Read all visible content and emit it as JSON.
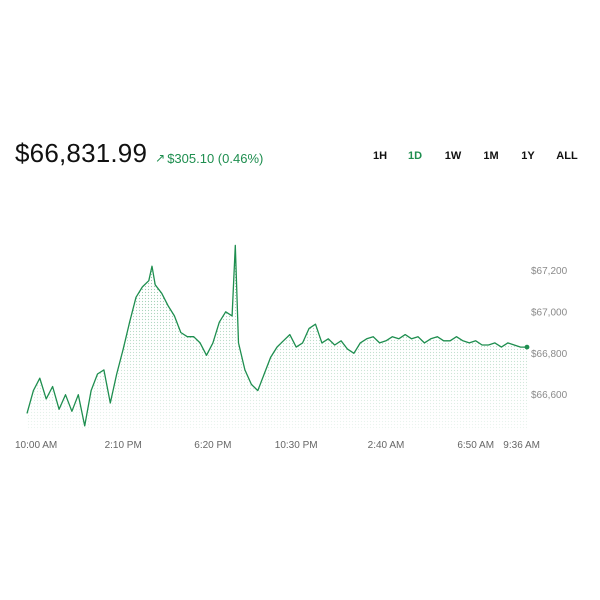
{
  "header": {
    "price": "$66,831.99",
    "change": "$305.10 (0.46%)",
    "change_direction": "up"
  },
  "range_tabs": [
    "1H",
    "1D",
    "1W",
    "1M",
    "1Y",
    "ALL"
  ],
  "active_range": "1D",
  "colors": {
    "accent": "#1e8e4f",
    "text": "#111111",
    "axis_text": "#8a8a8a"
  },
  "chart_data": {
    "type": "line",
    "series": [
      {
        "values": [
          [
            0,
            66510
          ],
          [
            0.2,
            66620
          ],
          [
            0.4,
            66680
          ],
          [
            0.6,
            66580
          ],
          [
            0.8,
            66640
          ],
          [
            1.0,
            66530
          ],
          [
            1.2,
            66600
          ],
          [
            1.4,
            66520
          ],
          [
            1.6,
            66600
          ],
          [
            1.8,
            66450
          ],
          [
            2.0,
            66620
          ],
          [
            2.2,
            66700
          ],
          [
            2.4,
            66720
          ],
          [
            2.6,
            66560
          ],
          [
            2.8,
            66700
          ],
          [
            3.0,
            66820
          ],
          [
            3.2,
            66950
          ],
          [
            3.4,
            67070
          ],
          [
            3.6,
            67120
          ],
          [
            3.8,
            67150
          ],
          [
            3.9,
            67220
          ],
          [
            4.0,
            67130
          ],
          [
            4.2,
            67090
          ],
          [
            4.4,
            67030
          ],
          [
            4.6,
            66980
          ],
          [
            4.8,
            66900
          ],
          [
            5.0,
            66880
          ],
          [
            5.2,
            66880
          ],
          [
            5.4,
            66850
          ],
          [
            5.6,
            66790
          ],
          [
            5.8,
            66850
          ],
          [
            6.0,
            66950
          ],
          [
            6.2,
            67000
          ],
          [
            6.4,
            66980
          ],
          [
            6.5,
            67320
          ],
          [
            6.6,
            66850
          ],
          [
            6.8,
            66720
          ],
          [
            7.0,
            66650
          ],
          [
            7.2,
            66620
          ],
          [
            7.4,
            66700
          ],
          [
            7.6,
            66780
          ],
          [
            7.8,
            66830
          ],
          [
            8.0,
            66860
          ],
          [
            8.2,
            66890
          ],
          [
            8.4,
            66830
          ],
          [
            8.6,
            66850
          ],
          [
            8.8,
            66920
          ],
          [
            9.0,
            66940
          ],
          [
            9.2,
            66850
          ],
          [
            9.4,
            66870
          ],
          [
            9.6,
            66840
          ],
          [
            9.8,
            66860
          ],
          [
            10.0,
            66820
          ],
          [
            10.2,
            66800
          ],
          [
            10.4,
            66850
          ],
          [
            10.6,
            66870
          ],
          [
            10.8,
            66880
          ],
          [
            11.0,
            66850
          ],
          [
            11.2,
            66860
          ],
          [
            11.4,
            66880
          ],
          [
            11.6,
            66870
          ],
          [
            11.8,
            66890
          ],
          [
            12.0,
            66870
          ],
          [
            12.2,
            66880
          ],
          [
            12.4,
            66850
          ],
          [
            12.6,
            66870
          ],
          [
            12.8,
            66880
          ],
          [
            13.0,
            66860
          ],
          [
            13.2,
            66860
          ],
          [
            13.4,
            66880
          ],
          [
            13.6,
            66860
          ],
          [
            13.8,
            66850
          ],
          [
            14.0,
            66860
          ],
          [
            14.2,
            66840
          ],
          [
            14.4,
            66840
          ],
          [
            14.6,
            66850
          ],
          [
            14.8,
            66830
          ],
          [
            15.0,
            66850
          ],
          [
            15.2,
            66840
          ],
          [
            15.4,
            66830
          ],
          [
            15.6,
            66830
          ]
        ]
      }
    ],
    "x_range": [
      0,
      15.6
    ],
    "y_range": [
      66430,
      67380
    ],
    "y_ticks": [
      {
        "value": 67200,
        "label": "$67,200"
      },
      {
        "value": 67000,
        "label": "$67,000"
      },
      {
        "value": 66800,
        "label": "$66,800"
      },
      {
        "value": 66600,
        "label": "$66,600"
      }
    ],
    "x_ticks": [
      {
        "value": 0,
        "label": "10:00 AM"
      },
      {
        "value": 3.0,
        "label": "2:10 PM"
      },
      {
        "value": 5.8,
        "label": "6:20 PM"
      },
      {
        "value": 8.4,
        "label": "10:30 PM"
      },
      {
        "value": 11.2,
        "label": "2:40 AM"
      },
      {
        "value": 14.0,
        "label": "6:50 AM"
      },
      {
        "value": 15.6,
        "label": "9:36 AM"
      }
    ],
    "area_fill": "dotted",
    "end_marker": true
  }
}
